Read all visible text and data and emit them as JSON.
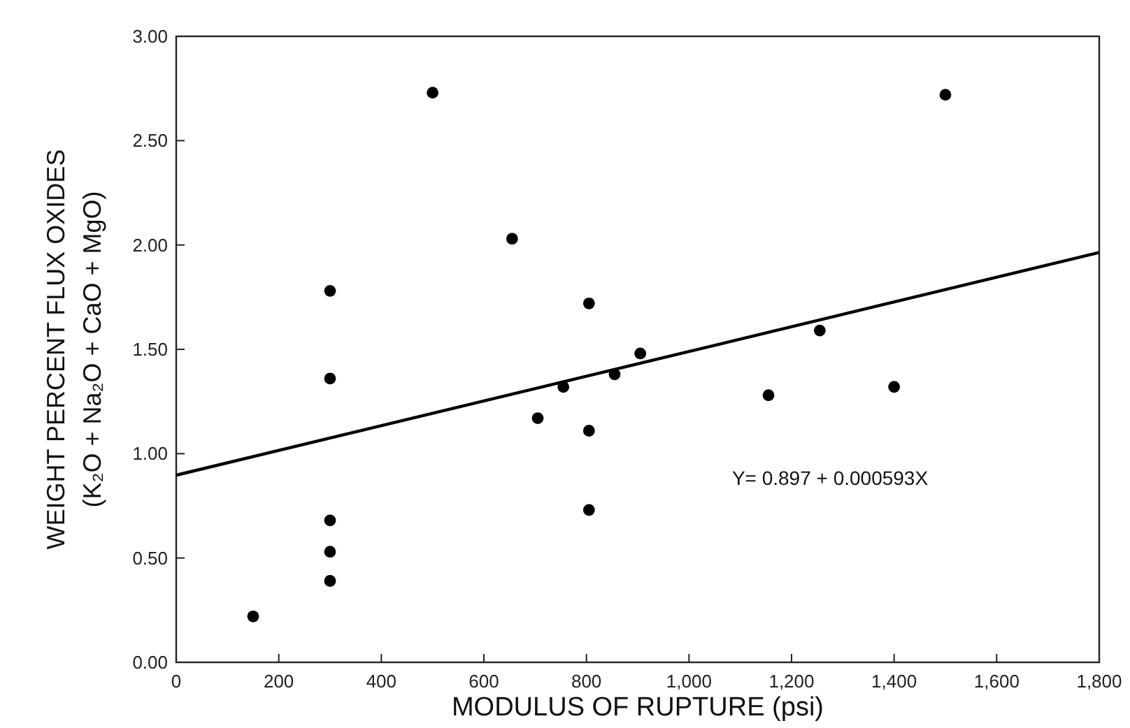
{
  "chart_data": {
    "type": "scatter",
    "xlabel": "MODULUS OF RUPTURE (psi)",
    "ylabel": "WEIGHT PERCENT FLUX OXIDES\n(K₂O + Na₂O + CaO + MgO)",
    "annotations": [
      "Y= 0.897 + 0.000593X"
    ],
    "xlim": [
      0,
      1800
    ],
    "ylim": [
      0,
      3
    ],
    "xticks": [
      0,
      200,
      400,
      600,
      800,
      {
        "value": 1000,
        "label": "1,000"
      },
      {
        "value": 1200,
        "label": "1,200"
      },
      {
        "value": 1400,
        "label": "1,400"
      },
      {
        "value": 1600,
        "label": "1,600"
      },
      {
        "value": 1800,
        "label": "1,800"
      }
    ],
    "yticks": [
      {
        "value": 0,
        "label": "0.00"
      },
      {
        "value": 0.5,
        "label": "0.50"
      },
      {
        "value": 1,
        "label": "1.00"
      },
      {
        "value": 1.5,
        "label": "1.50"
      },
      {
        "value": 2,
        "label": "2.00"
      },
      {
        "value": 2.5,
        "label": "2.50"
      },
      {
        "value": 3,
        "label": "3.00"
      }
    ],
    "grid": false,
    "series": [
      {
        "color": "#000000",
        "marker": "circle",
        "x": [
          150,
          300,
          300,
          300,
          300,
          300,
          500,
          655,
          705,
          755,
          805,
          805,
          805,
          855,
          905,
          1155,
          1255,
          1400,
          1500
        ],
        "values": [
          0.22,
          1.78,
          1.36,
          0.68,
          0.53,
          0.39,
          2.73,
          2.03,
          1.17,
          1.32,
          1.72,
          1.11,
          0.73,
          1.38,
          1.48,
          1.28,
          1.59,
          1.32,
          2.72
        ]
      },
      {
        "type": "line",
        "color": "#000000",
        "line_style": "solid",
        "x": [
          0,
          1800
        ],
        "values": [
          0.897,
          1.964
        ]
      }
    ]
  }
}
